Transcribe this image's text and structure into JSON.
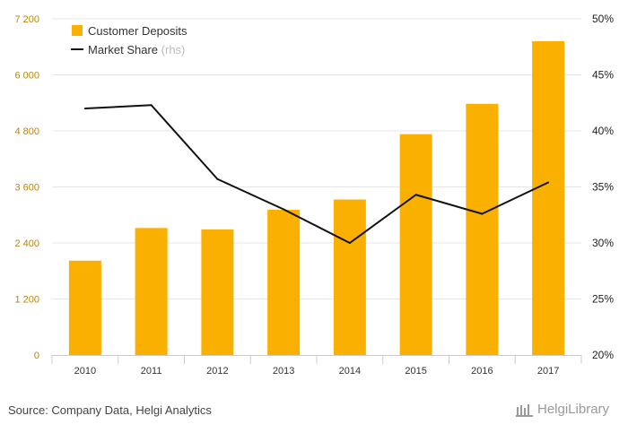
{
  "chart_data": {
    "type": "bar+line",
    "categories": [
      "2010",
      "2011",
      "2012",
      "2013",
      "2014",
      "2015",
      "2016",
      "2017"
    ],
    "series": [
      {
        "name": "Customer Deposits",
        "type": "bar",
        "axis": "left",
        "color": "#f9b000",
        "values": [
          2020,
          2720,
          2690,
          3110,
          3330,
          4730,
          5380,
          6720
        ]
      },
      {
        "name": "Market Share",
        "name_suffix": "(rhs)",
        "type": "line",
        "axis": "right",
        "color": "#111111",
        "values": [
          42.0,
          42.3,
          35.7,
          33.0,
          30.0,
          34.3,
          32.6,
          35.4
        ]
      }
    ],
    "y_left": {
      "min": 0,
      "max": 7200,
      "ticks": [
        0,
        1200,
        2400,
        3600,
        4800,
        6000,
        7200
      ],
      "tick_labels": [
        "0",
        "1 200",
        "2 400",
        "3 600",
        "4 800",
        "6 000",
        "7 200"
      ]
    },
    "y_right": {
      "min": 20,
      "max": 50,
      "ticks": [
        20,
        25,
        30,
        35,
        40,
        45,
        50
      ],
      "tick_labels": [
        "20%",
        "25%",
        "30%",
        "35%",
        "40%",
        "45%",
        "50%"
      ]
    },
    "grid": true,
    "legend_position": "top-left"
  },
  "footer": {
    "source": "Source: Company Data, Helgi Analytics",
    "brand": "HelgiLibrary"
  }
}
